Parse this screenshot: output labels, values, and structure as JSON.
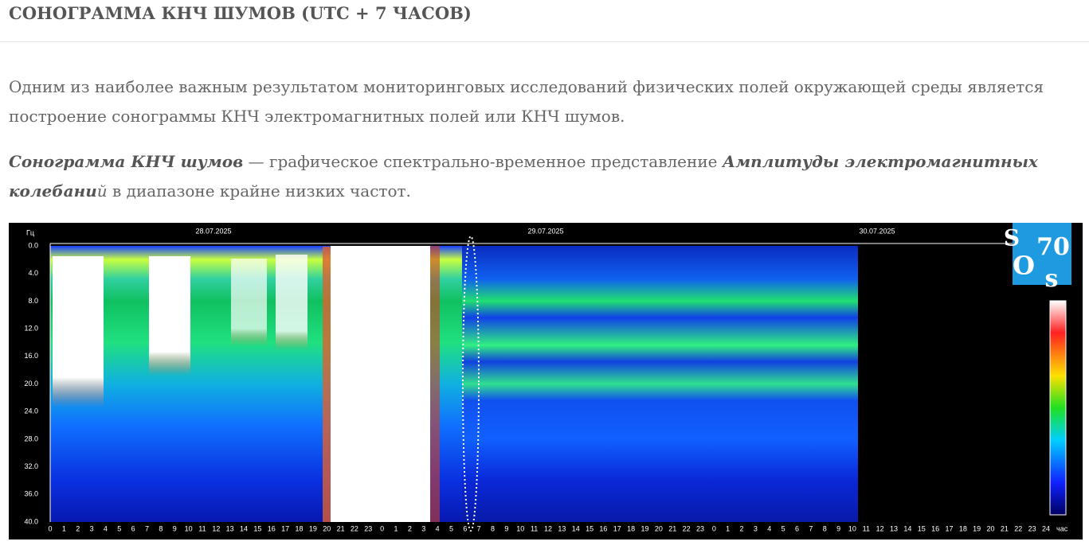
{
  "header": {
    "title": "СОНОГРАММА КНЧ ШУМОВ (UTC + 7 ЧАСОВ)"
  },
  "paragraphs": [
    {
      "segments": [
        {
          "text": "Одним из наиболее важным результатом мониторинговых исследований физических полей окружающей среды является построение сонограммы КНЧ электромагнитных полей или КНЧ шумов."
        }
      ]
    },
    {
      "segments": [
        {
          "text": "Сонограмма КНЧ шумов"
        },
        {
          "text": " — графическое спектрально-временное представление "
        },
        {
          "text": "Амплитуды электромагнитных колебани"
        },
        {
          "text": "й"
        },
        {
          "text": " в диапазоне крайне  низких частот."
        }
      ]
    }
  ],
  "sonogram": {
    "y_unit": "Гц",
    "x_unit": "час",
    "dates": [
      "28.07.2025",
      "29.07.2025",
      "30.07.2025"
    ],
    "frequency_labels": [
      "0.0",
      "4.0",
      "8.0",
      "12.0",
      "16.0",
      "20.0",
      "24.0",
      "28.0",
      "32.0",
      "36.0",
      "40.0"
    ],
    "hour_labels": [
      "0",
      "1",
      "2",
      "3",
      "4",
      "5",
      "6",
      "7",
      "8",
      "9",
      "10",
      "11",
      "12",
      "13",
      "14",
      "15",
      "16",
      "17",
      "18",
      "19",
      "20",
      "21",
      "22",
      "23",
      "0",
      "1",
      "2",
      "3",
      "4",
      "5",
      "6",
      "7",
      "8",
      "9",
      "10",
      "11",
      "12",
      "13",
      "14",
      "15",
      "16",
      "17",
      "18",
      "19",
      "20",
      "21",
      "22",
      "23",
      "0",
      "1",
      "2",
      "3",
      "4",
      "5",
      "6",
      "7",
      "8",
      "9",
      "10",
      "11",
      "12",
      "13",
      "14",
      "15",
      "16",
      "17",
      "18",
      "19",
      "20",
      "21",
      "22",
      "23",
      "24"
    ],
    "logo": [
      "S",
      "70",
      "O",
      "s"
    ]
  }
}
